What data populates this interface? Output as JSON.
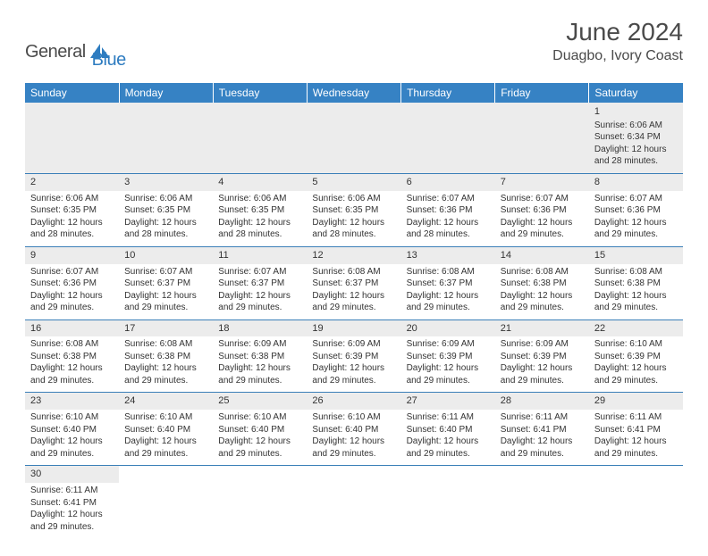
{
  "brand": {
    "part1": "General",
    "part2": "Blue",
    "logo_color": "#2e7cc0"
  },
  "title": "June 2024",
  "location": "Duagbo, Ivory Coast",
  "header_bg": "#3682c4",
  "border_color": "#3a7fb8",
  "day_bg": "#ececec",
  "days": [
    "Sunday",
    "Monday",
    "Tuesday",
    "Wednesday",
    "Thursday",
    "Friday",
    "Saturday"
  ],
  "weeks": [
    [
      null,
      null,
      null,
      null,
      null,
      null,
      {
        "n": "1",
        "sunrise": "Sunrise: 6:06 AM",
        "sunset": "Sunset: 6:34 PM",
        "daylight1": "Daylight: 12 hours",
        "daylight2": "and 28 minutes."
      }
    ],
    [
      {
        "n": "2",
        "sunrise": "Sunrise: 6:06 AM",
        "sunset": "Sunset: 6:35 PM",
        "daylight1": "Daylight: 12 hours",
        "daylight2": "and 28 minutes."
      },
      {
        "n": "3",
        "sunrise": "Sunrise: 6:06 AM",
        "sunset": "Sunset: 6:35 PM",
        "daylight1": "Daylight: 12 hours",
        "daylight2": "and 28 minutes."
      },
      {
        "n": "4",
        "sunrise": "Sunrise: 6:06 AM",
        "sunset": "Sunset: 6:35 PM",
        "daylight1": "Daylight: 12 hours",
        "daylight2": "and 28 minutes."
      },
      {
        "n": "5",
        "sunrise": "Sunrise: 6:06 AM",
        "sunset": "Sunset: 6:35 PM",
        "daylight1": "Daylight: 12 hours",
        "daylight2": "and 28 minutes."
      },
      {
        "n": "6",
        "sunrise": "Sunrise: 6:07 AM",
        "sunset": "Sunset: 6:36 PM",
        "daylight1": "Daylight: 12 hours",
        "daylight2": "and 28 minutes."
      },
      {
        "n": "7",
        "sunrise": "Sunrise: 6:07 AM",
        "sunset": "Sunset: 6:36 PM",
        "daylight1": "Daylight: 12 hours",
        "daylight2": "and 29 minutes."
      },
      {
        "n": "8",
        "sunrise": "Sunrise: 6:07 AM",
        "sunset": "Sunset: 6:36 PM",
        "daylight1": "Daylight: 12 hours",
        "daylight2": "and 29 minutes."
      }
    ],
    [
      {
        "n": "9",
        "sunrise": "Sunrise: 6:07 AM",
        "sunset": "Sunset: 6:36 PM",
        "daylight1": "Daylight: 12 hours",
        "daylight2": "and 29 minutes."
      },
      {
        "n": "10",
        "sunrise": "Sunrise: 6:07 AM",
        "sunset": "Sunset: 6:37 PM",
        "daylight1": "Daylight: 12 hours",
        "daylight2": "and 29 minutes."
      },
      {
        "n": "11",
        "sunrise": "Sunrise: 6:07 AM",
        "sunset": "Sunset: 6:37 PM",
        "daylight1": "Daylight: 12 hours",
        "daylight2": "and 29 minutes."
      },
      {
        "n": "12",
        "sunrise": "Sunrise: 6:08 AM",
        "sunset": "Sunset: 6:37 PM",
        "daylight1": "Daylight: 12 hours",
        "daylight2": "and 29 minutes."
      },
      {
        "n": "13",
        "sunrise": "Sunrise: 6:08 AM",
        "sunset": "Sunset: 6:37 PM",
        "daylight1": "Daylight: 12 hours",
        "daylight2": "and 29 minutes."
      },
      {
        "n": "14",
        "sunrise": "Sunrise: 6:08 AM",
        "sunset": "Sunset: 6:38 PM",
        "daylight1": "Daylight: 12 hours",
        "daylight2": "and 29 minutes."
      },
      {
        "n": "15",
        "sunrise": "Sunrise: 6:08 AM",
        "sunset": "Sunset: 6:38 PM",
        "daylight1": "Daylight: 12 hours",
        "daylight2": "and 29 minutes."
      }
    ],
    [
      {
        "n": "16",
        "sunrise": "Sunrise: 6:08 AM",
        "sunset": "Sunset: 6:38 PM",
        "daylight1": "Daylight: 12 hours",
        "daylight2": "and 29 minutes."
      },
      {
        "n": "17",
        "sunrise": "Sunrise: 6:08 AM",
        "sunset": "Sunset: 6:38 PM",
        "daylight1": "Daylight: 12 hours",
        "daylight2": "and 29 minutes."
      },
      {
        "n": "18",
        "sunrise": "Sunrise: 6:09 AM",
        "sunset": "Sunset: 6:38 PM",
        "daylight1": "Daylight: 12 hours",
        "daylight2": "and 29 minutes."
      },
      {
        "n": "19",
        "sunrise": "Sunrise: 6:09 AM",
        "sunset": "Sunset: 6:39 PM",
        "daylight1": "Daylight: 12 hours",
        "daylight2": "and 29 minutes."
      },
      {
        "n": "20",
        "sunrise": "Sunrise: 6:09 AM",
        "sunset": "Sunset: 6:39 PM",
        "daylight1": "Daylight: 12 hours",
        "daylight2": "and 29 minutes."
      },
      {
        "n": "21",
        "sunrise": "Sunrise: 6:09 AM",
        "sunset": "Sunset: 6:39 PM",
        "daylight1": "Daylight: 12 hours",
        "daylight2": "and 29 minutes."
      },
      {
        "n": "22",
        "sunrise": "Sunrise: 6:10 AM",
        "sunset": "Sunset: 6:39 PM",
        "daylight1": "Daylight: 12 hours",
        "daylight2": "and 29 minutes."
      }
    ],
    [
      {
        "n": "23",
        "sunrise": "Sunrise: 6:10 AM",
        "sunset": "Sunset: 6:40 PM",
        "daylight1": "Daylight: 12 hours",
        "daylight2": "and 29 minutes."
      },
      {
        "n": "24",
        "sunrise": "Sunrise: 6:10 AM",
        "sunset": "Sunset: 6:40 PM",
        "daylight1": "Daylight: 12 hours",
        "daylight2": "and 29 minutes."
      },
      {
        "n": "25",
        "sunrise": "Sunrise: 6:10 AM",
        "sunset": "Sunset: 6:40 PM",
        "daylight1": "Daylight: 12 hours",
        "daylight2": "and 29 minutes."
      },
      {
        "n": "26",
        "sunrise": "Sunrise: 6:10 AM",
        "sunset": "Sunset: 6:40 PM",
        "daylight1": "Daylight: 12 hours",
        "daylight2": "and 29 minutes."
      },
      {
        "n": "27",
        "sunrise": "Sunrise: 6:11 AM",
        "sunset": "Sunset: 6:40 PM",
        "daylight1": "Daylight: 12 hours",
        "daylight2": "and 29 minutes."
      },
      {
        "n": "28",
        "sunrise": "Sunrise: 6:11 AM",
        "sunset": "Sunset: 6:41 PM",
        "daylight1": "Daylight: 12 hours",
        "daylight2": "and 29 minutes."
      },
      {
        "n": "29",
        "sunrise": "Sunrise: 6:11 AM",
        "sunset": "Sunset: 6:41 PM",
        "daylight1": "Daylight: 12 hours",
        "daylight2": "and 29 minutes."
      }
    ],
    [
      {
        "n": "30",
        "sunrise": "Sunrise: 6:11 AM",
        "sunset": "Sunset: 6:41 PM",
        "daylight1": "Daylight: 12 hours",
        "daylight2": "and 29 minutes."
      },
      null,
      null,
      null,
      null,
      null,
      null
    ]
  ]
}
